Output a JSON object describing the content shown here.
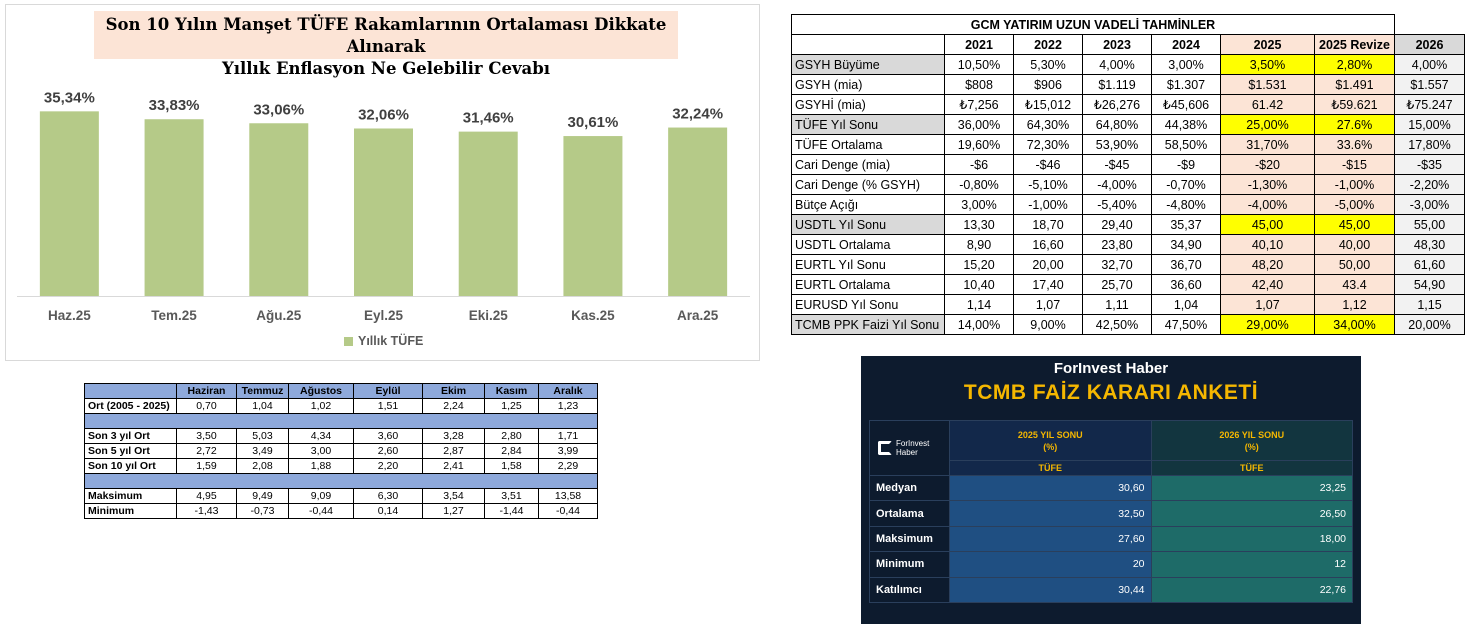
{
  "chart": {
    "title_line1": "Son 10 Yılın Manşet TÜFE Rakamlarının Ortalaması Dikkate Alınarak",
    "title_line2": "Yıllık Enflasyon Ne Gelebilir Cevabı",
    "legend": "Yıllık TÜFE",
    "bar_color": "#b5ca88"
  },
  "chart_data": {
    "type": "bar",
    "categories": [
      "Haz.25",
      "Tem.25",
      "Ağu.25",
      "Eyl.25",
      "Eki.25",
      "Kas.25",
      "Ara.25"
    ],
    "series": [
      {
        "name": "Yıllık TÜFE",
        "values": [
          35.34,
          33.83,
          33.06,
          32.06,
          31.46,
          30.61,
          32.24
        ]
      }
    ],
    "data_labels": [
      "35,34%",
      "33,83%",
      "33,06%",
      "32,06%",
      "31,46%",
      "30,61%",
      "32,24%"
    ],
    "title": "Son 10 Yılın Manşet TÜFE Rakamlarının Ortalaması Dikkate Alınarak Yıllık Enflasyon Ne Gelebilir Cevabı",
    "ylim": [
      0,
      40
    ],
    "grid": false,
    "legend_position": "bottom"
  },
  "hist_table": {
    "headers": [
      "Haziran",
      "Temmuz",
      "Ağustos",
      "Eylül",
      "Ekim",
      "Kasım",
      "Aralık"
    ],
    "rows": [
      {
        "label": "Ort (2005 - 2025)",
        "values": [
          "0,70",
          "1,04",
          "1,02",
          "1,51",
          "2,24",
          "1,25",
          "1,23"
        ]
      },
      {
        "label": "Son 3 yıl Ort",
        "values": [
          "3,50",
          "5,03",
          "4,34",
          "3,60",
          "3,28",
          "2,80",
          "1,71"
        ]
      },
      {
        "label": "Son 5 yıl Ort",
        "values": [
          "2,72",
          "3,49",
          "3,00",
          "2,60",
          "2,87",
          "2,84",
          "3,99"
        ]
      },
      {
        "label": "Son 10 yıl Ort",
        "values": [
          "1,59",
          "2,08",
          "1,88",
          "2,20",
          "2,41",
          "1,58",
          "2,29"
        ]
      },
      {
        "label": "Maksimum",
        "values": [
          "4,95",
          "9,49",
          "9,09",
          "6,30",
          "3,54",
          "3,51",
          "13,58"
        ]
      },
      {
        "label": "Minimum",
        "values": [
          "-1,43",
          "-0,73",
          "-0,44",
          "0,14",
          "1,27",
          "-1,44",
          "-0,44"
        ]
      }
    ]
  },
  "gcm_table": {
    "title": "GCM YATIRIM UZUN VADELİ TAHMİNLER",
    "years": [
      "2021",
      "2022",
      "2023",
      "2024",
      "2025",
      "2025 Revize",
      "2026"
    ],
    "rows": [
      {
        "label": "GSYH Büyüme",
        "values": [
          "10,50%",
          "5,30%",
          "4,00%",
          "3,00%",
          "3,50%",
          "2,80%",
          "4,00%"
        ]
      },
      {
        "label": "GSYH (mia)",
        "values": [
          "$808",
          "$906",
          "$1.119",
          "$1.307",
          "$1.531",
          "$1.491",
          "$1.557"
        ]
      },
      {
        "label": "GSYHİ (mia)",
        "values": [
          "₺7,256",
          "₺15,012",
          "₺26,276",
          "₺45,606",
          "61.42",
          "₺59.621",
          "₺75.247"
        ]
      },
      {
        "label": "TÜFE Yıl Sonu",
        "values": [
          "36,00%",
          "64,30%",
          "64,80%",
          "44,38%",
          "25,00%",
          "27.6%",
          "15,00%"
        ]
      },
      {
        "label": "TÜFE Ortalama",
        "values": [
          "19,60%",
          "72,30%",
          "53,90%",
          "58,50%",
          "31,70%",
          "33.6%",
          "17,80%"
        ]
      },
      {
        "label": "Cari Denge (mia)",
        "values": [
          "-$6",
          "-$46",
          "-$45",
          "-$9",
          "-$20",
          "-$15",
          "-$35"
        ]
      },
      {
        "label": "Cari Denge (% GSYH)",
        "values": [
          "-0,80%",
          "-5,10%",
          "-4,00%",
          "-0,70%",
          "-1,30%",
          "-1,00%",
          "-2,20%"
        ]
      },
      {
        "label": "Bütçe Açığı",
        "values": [
          "3,00%",
          "-1,00%",
          "-5,40%",
          "-4,80%",
          "-4,00%",
          "-5,00%",
          "-3,00%"
        ]
      },
      {
        "label": "USDTL Yıl Sonu",
        "values": [
          "13,30",
          "18,70",
          "29,40",
          "35,37",
          "45,00",
          "45,00",
          "55,00"
        ]
      },
      {
        "label": "USDTL Ortalama",
        "values": [
          "8,90",
          "16,60",
          "23,80",
          "34,90",
          "40,10",
          "40,00",
          "48,30"
        ]
      },
      {
        "label": "EURTL Yıl Sonu",
        "values": [
          "15,20",
          "20,00",
          "32,70",
          "36,70",
          "48,20",
          "50,00",
          "61,60"
        ]
      },
      {
        "label": "EURTL Ortalama",
        "values": [
          "10,40",
          "17,40",
          "25,70",
          "36,60",
          "42,40",
          "43.4",
          "54,90"
        ]
      },
      {
        "label": "EURUSD Yıl Sonu",
        "values": [
          "1,14",
          "1,07",
          "1,11",
          "1,04",
          "1,07",
          "1,12",
          "1,15"
        ]
      },
      {
        "label": "TCMB PPK Faizi Yıl Sonu",
        "values": [
          "14,00%",
          "9,00%",
          "42,50%",
          "47,50%",
          "29,00%",
          "34,00%",
          "20,00%"
        ]
      }
    ],
    "highlight_rows": [
      0,
      3,
      8,
      13
    ],
    "colors": {
      "yellow": "#ffff00",
      "peach": "#fce4d6",
      "gray": "#d9d9d9"
    }
  },
  "forinvest": {
    "brand": "ForInvest Haber",
    "title": "TCMB FAİZ KARARI ANKETİ",
    "logo_line1": "ForInvest",
    "logo_line2": "Haber",
    "col1_line1": "2025 YIL SONU",
    "col1_line2": "(%)",
    "col2_line1": "2026 YIL SONU",
    "col2_line2": "(%)",
    "sub1": "TÜFE",
    "sub2": "TÜFE",
    "rows": [
      {
        "label": "Medyan",
        "v2025": "30,60",
        "v2026": "23,25"
      },
      {
        "label": "Ortalama",
        "v2025": "32,50",
        "v2026": "26,50"
      },
      {
        "label": "Maksimum",
        "v2025": "27,60",
        "v2026": "18,00"
      },
      {
        "label": "Minimum",
        "v2025": "20",
        "v2026": "12"
      },
      {
        "label": "Katılımcı",
        "v2025": "30,44",
        "v2026": "22,76"
      }
    ],
    "colors": {
      "background": "#0d1b2e",
      "accent": "#f5b700",
      "col2025": "#1f4f82",
      "col2026": "#1e6b68"
    }
  }
}
